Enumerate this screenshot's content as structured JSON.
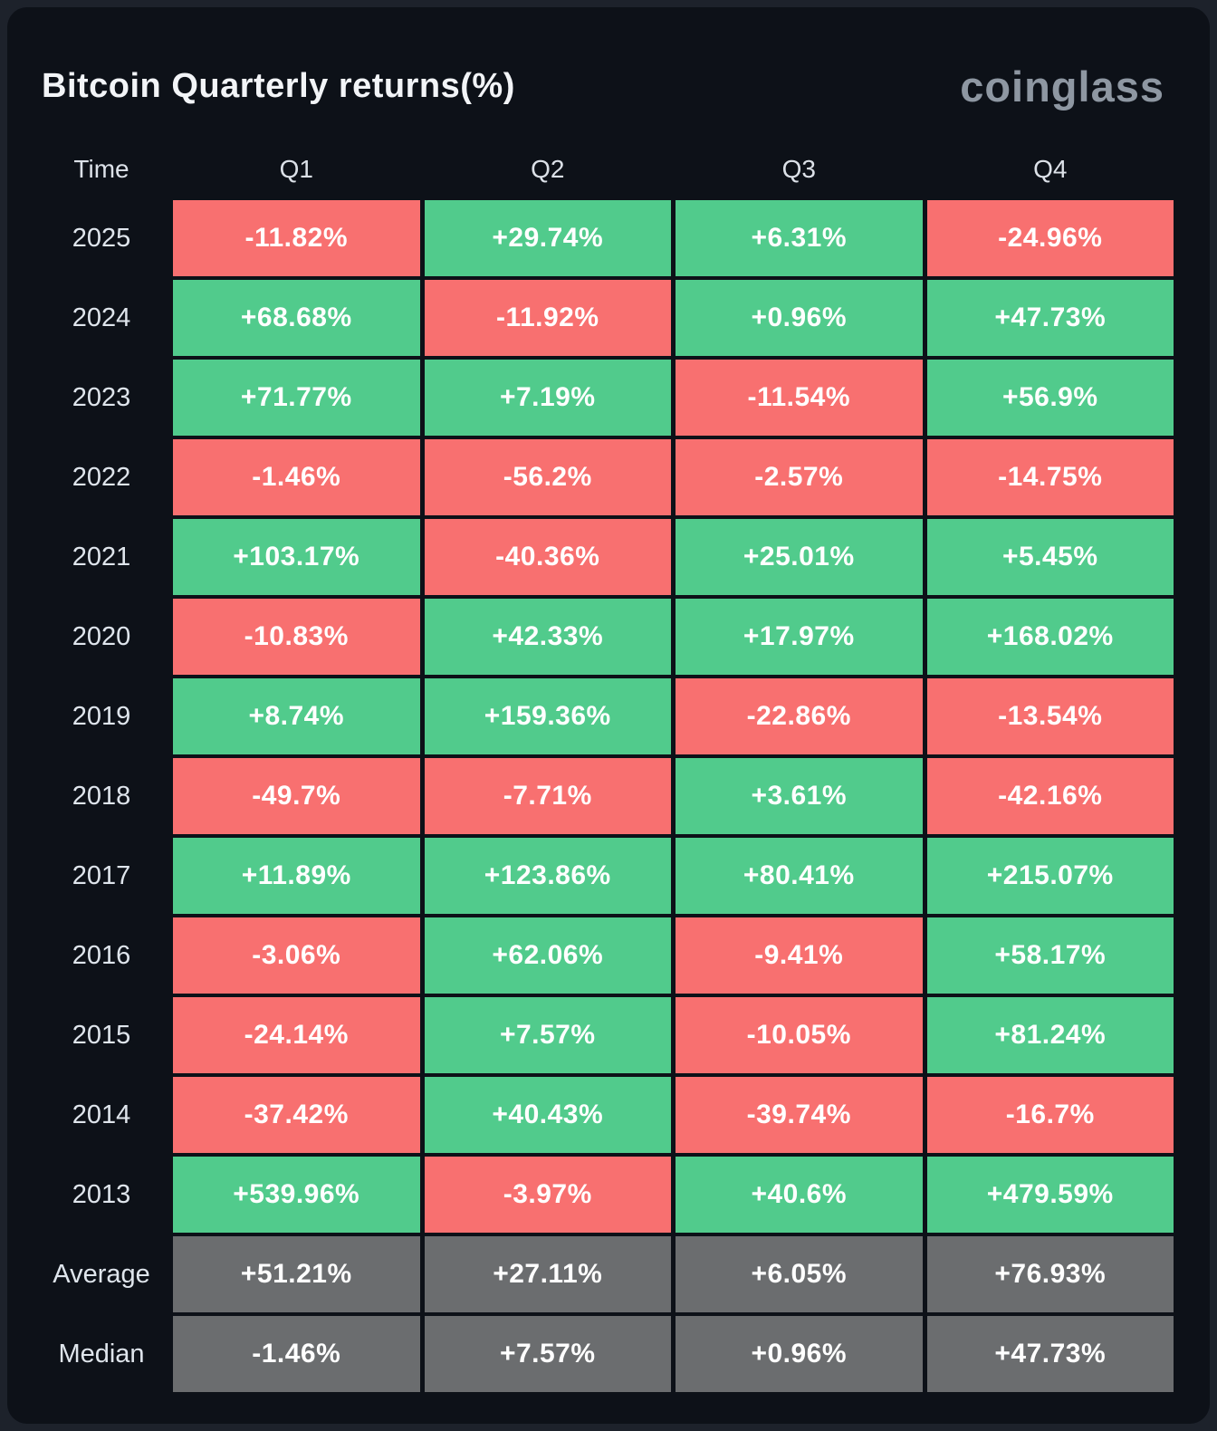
{
  "header": {
    "title": "Bitcoin Quarterly returns(%)",
    "logo": "coinglass"
  },
  "colors": {
    "positive": "#51cb8c",
    "negative": "#f87070",
    "neutral": "#6b6d6f",
    "card_background": "#0d1118",
    "page_background": "#1d222b"
  },
  "table": {
    "columns": [
      "Time",
      "Q1",
      "Q2",
      "Q3",
      "Q4"
    ],
    "rows": [
      {
        "label": "2025",
        "cells": [
          {
            "text": "-11.82%",
            "tone": "neg"
          },
          {
            "text": "+29.74%",
            "tone": "pos"
          },
          {
            "text": "+6.31%",
            "tone": "pos"
          },
          {
            "text": "-24.96%",
            "tone": "neg"
          }
        ]
      },
      {
        "label": "2024",
        "cells": [
          {
            "text": "+68.68%",
            "tone": "pos"
          },
          {
            "text": "-11.92%",
            "tone": "neg"
          },
          {
            "text": "+0.96%",
            "tone": "pos"
          },
          {
            "text": "+47.73%",
            "tone": "pos"
          }
        ]
      },
      {
        "label": "2023",
        "cells": [
          {
            "text": "+71.77%",
            "tone": "pos"
          },
          {
            "text": "+7.19%",
            "tone": "pos"
          },
          {
            "text": "-11.54%",
            "tone": "neg"
          },
          {
            "text": "+56.9%",
            "tone": "pos"
          }
        ]
      },
      {
        "label": "2022",
        "cells": [
          {
            "text": "-1.46%",
            "tone": "neg"
          },
          {
            "text": "-56.2%",
            "tone": "neg"
          },
          {
            "text": "-2.57%",
            "tone": "neg"
          },
          {
            "text": "-14.75%",
            "tone": "neg"
          }
        ]
      },
      {
        "label": "2021",
        "cells": [
          {
            "text": "+103.17%",
            "tone": "pos"
          },
          {
            "text": "-40.36%",
            "tone": "neg"
          },
          {
            "text": "+25.01%",
            "tone": "pos"
          },
          {
            "text": "+5.45%",
            "tone": "pos"
          }
        ]
      },
      {
        "label": "2020",
        "cells": [
          {
            "text": "-10.83%",
            "tone": "neg"
          },
          {
            "text": "+42.33%",
            "tone": "pos"
          },
          {
            "text": "+17.97%",
            "tone": "pos"
          },
          {
            "text": "+168.02%",
            "tone": "pos"
          }
        ]
      },
      {
        "label": "2019",
        "cells": [
          {
            "text": "+8.74%",
            "tone": "pos"
          },
          {
            "text": "+159.36%",
            "tone": "pos"
          },
          {
            "text": "-22.86%",
            "tone": "neg"
          },
          {
            "text": "-13.54%",
            "tone": "neg"
          }
        ]
      },
      {
        "label": "2018",
        "cells": [
          {
            "text": "-49.7%",
            "tone": "neg"
          },
          {
            "text": "-7.71%",
            "tone": "neg"
          },
          {
            "text": "+3.61%",
            "tone": "pos"
          },
          {
            "text": "-42.16%",
            "tone": "neg"
          }
        ]
      },
      {
        "label": "2017",
        "cells": [
          {
            "text": "+11.89%",
            "tone": "pos"
          },
          {
            "text": "+123.86%",
            "tone": "pos"
          },
          {
            "text": "+80.41%",
            "tone": "pos"
          },
          {
            "text": "+215.07%",
            "tone": "pos"
          }
        ]
      },
      {
        "label": "2016",
        "cells": [
          {
            "text": "-3.06%",
            "tone": "neg"
          },
          {
            "text": "+62.06%",
            "tone": "pos"
          },
          {
            "text": "-9.41%",
            "tone": "neg"
          },
          {
            "text": "+58.17%",
            "tone": "pos"
          }
        ]
      },
      {
        "label": "2015",
        "cells": [
          {
            "text": "-24.14%",
            "tone": "neg"
          },
          {
            "text": "+7.57%",
            "tone": "pos"
          },
          {
            "text": "-10.05%",
            "tone": "neg"
          },
          {
            "text": "+81.24%",
            "tone": "pos"
          }
        ]
      },
      {
        "label": "2014",
        "cells": [
          {
            "text": "-37.42%",
            "tone": "neg"
          },
          {
            "text": "+40.43%",
            "tone": "pos"
          },
          {
            "text": "-39.74%",
            "tone": "neg"
          },
          {
            "text": "-16.7%",
            "tone": "neg"
          }
        ]
      },
      {
        "label": "2013",
        "cells": [
          {
            "text": "+539.96%",
            "tone": "pos"
          },
          {
            "text": "-3.97%",
            "tone": "neg"
          },
          {
            "text": "+40.6%",
            "tone": "pos"
          },
          {
            "text": "+479.59%",
            "tone": "pos"
          }
        ]
      },
      {
        "label": "Average",
        "cells": [
          {
            "text": "+51.21%",
            "tone": "neutral"
          },
          {
            "text": "+27.11%",
            "tone": "neutral"
          },
          {
            "text": "+6.05%",
            "tone": "neutral"
          },
          {
            "text": "+76.93%",
            "tone": "neutral"
          }
        ]
      },
      {
        "label": "Median",
        "cells": [
          {
            "text": "-1.46%",
            "tone": "neutral"
          },
          {
            "text": "+7.57%",
            "tone": "neutral"
          },
          {
            "text": "+0.96%",
            "tone": "neutral"
          },
          {
            "text": "+47.73%",
            "tone": "neutral"
          }
        ]
      }
    ]
  },
  "chart_data": {
    "type": "heatmap",
    "title": "Bitcoin Quarterly returns(%)",
    "columns": [
      "Q1",
      "Q2",
      "Q3",
      "Q4"
    ],
    "rows": [
      "2025",
      "2024",
      "2023",
      "2022",
      "2021",
      "2020",
      "2019",
      "2018",
      "2017",
      "2016",
      "2015",
      "2014",
      "2013",
      "Average",
      "Median"
    ],
    "values": [
      [
        -11.82,
        29.74,
        6.31,
        -24.96
      ],
      [
        68.68,
        -11.92,
        0.96,
        47.73
      ],
      [
        71.77,
        7.19,
        -11.54,
        56.9
      ],
      [
        -1.46,
        -56.2,
        -2.57,
        -14.75
      ],
      [
        103.17,
        -40.36,
        25.01,
        5.45
      ],
      [
        -10.83,
        42.33,
        17.97,
        168.02
      ],
      [
        8.74,
        159.36,
        -22.86,
        -13.54
      ],
      [
        -49.7,
        -7.71,
        3.61,
        -42.16
      ],
      [
        11.89,
        123.86,
        80.41,
        215.07
      ],
      [
        -3.06,
        62.06,
        -9.41,
        58.17
      ],
      [
        -24.14,
        7.57,
        -10.05,
        81.24
      ],
      [
        -37.42,
        40.43,
        -39.74,
        -16.7
      ],
      [
        539.96,
        -3.97,
        40.6,
        479.59
      ],
      [
        51.21,
        27.11,
        6.05,
        76.93
      ],
      [
        -1.46,
        7.57,
        0.96,
        47.73
      ]
    ],
    "legend": "green = positive quarter, red = negative quarter, gray = aggregate rows",
    "unit": "%"
  }
}
